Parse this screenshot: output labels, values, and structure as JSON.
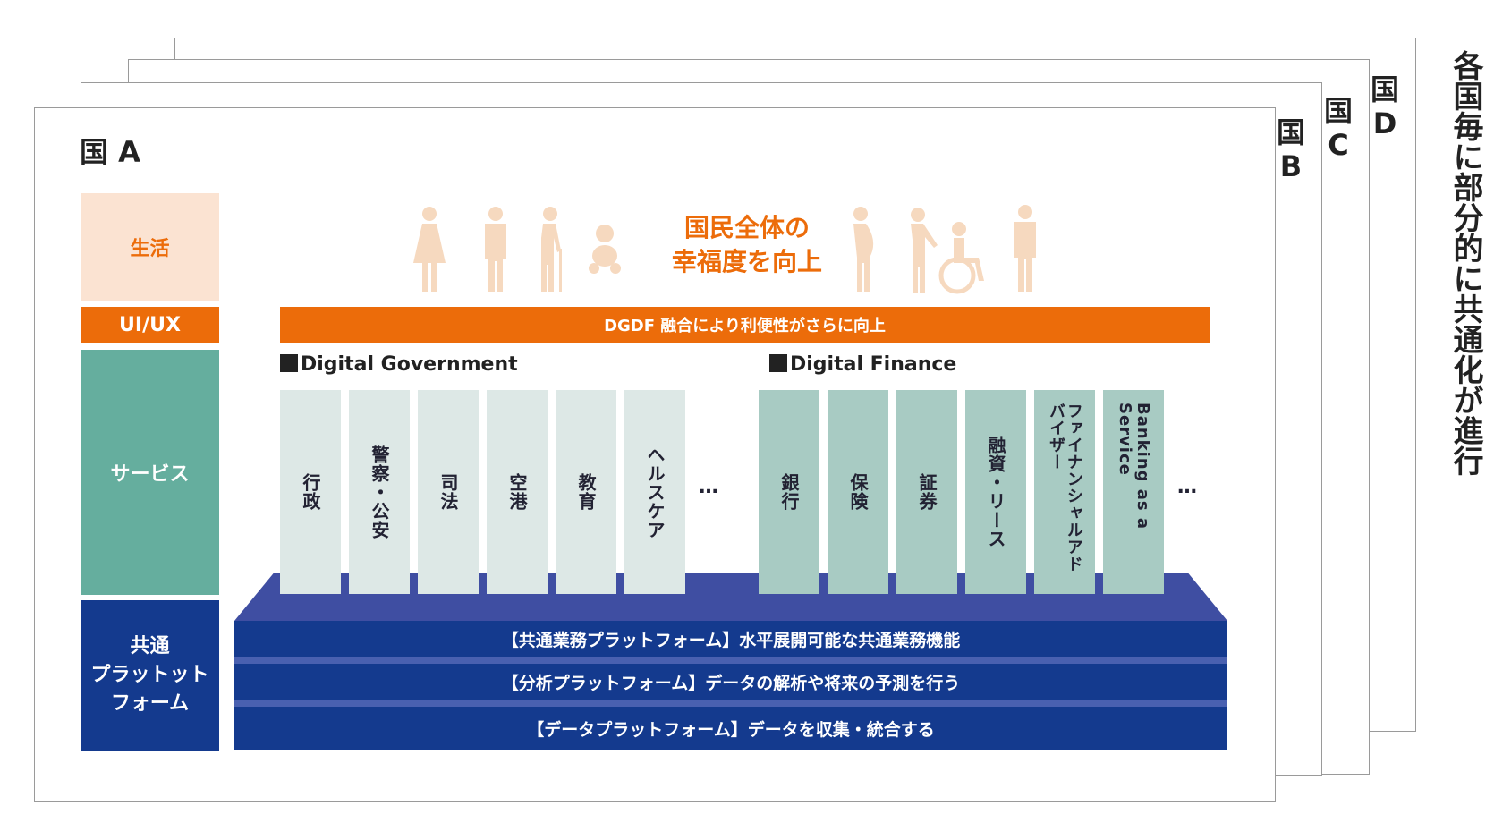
{
  "cards": {
    "country_d": [
      "国",
      "D"
    ],
    "country_c": [
      "国",
      "C"
    ],
    "country_b": [
      "国",
      "B"
    ],
    "country_a": "国 A"
  },
  "side_note": "各国毎に部分的に共通化が進行",
  "layers_left": {
    "life": "生活",
    "uiux": "UI/UX",
    "service": "サービス",
    "common": [
      "共通",
      "プラットット",
      "フォーム"
    ]
  },
  "headline": [
    "国民全体の",
    "幸福度を向上"
  ],
  "uiux_bar": "DGDF 融合により利便性がさらに向上",
  "sections": {
    "government": "Digital Government",
    "finance": "Digital Finance"
  },
  "government_services": [
    "行政",
    "警察・公安",
    "司法",
    "空港",
    "教育",
    "ヘルスケア"
  ],
  "finance_services": [
    "銀行",
    "保険",
    "証券",
    "融資・リース",
    "ファイナンシャルアドバイザー",
    "Banking as a Service"
  ],
  "ellipsis": "…",
  "platforms": [
    "【共通業務プラットフォーム】水平展開可能な共通業務機能",
    "【分析プラットフォーム】データの解析や将来の予測を行う",
    "【データプラットフォーム】データを収集・統合する"
  ],
  "colors": {
    "orange": "#ec6c0a",
    "peach": "#fbe3d2",
    "teal": "#65ae9e",
    "navy": "#143a8e",
    "gov_pillar": "#dde8e6",
    "fin_pillar": "#a8cbc3",
    "person_icon": "#f6d9bf"
  }
}
